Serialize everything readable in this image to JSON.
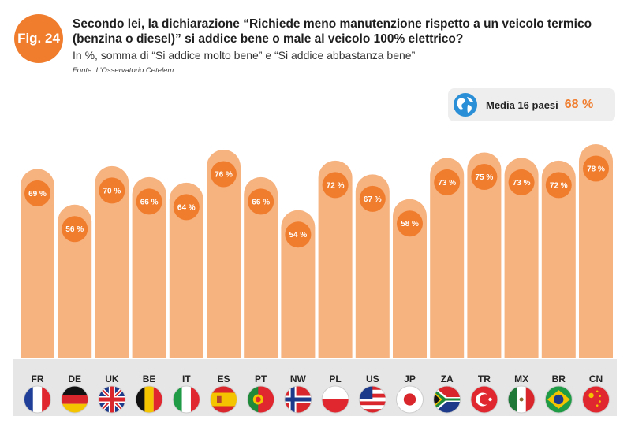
{
  "figure": {
    "badge": "Fig. 24",
    "title": "Secondo lei, la dichiarazione “Richiede meno manutenzione rispetto a un veicolo termico (benzina o diesel)” si addice bene o male al veicolo 100% elettrico?",
    "subtitle": "In %, somma di “Si addice molto bene” e “Si addice abbastanza bene”",
    "source": "Fonte: L’Osservatorio Cetelem"
  },
  "average": {
    "icon": "globe-icon",
    "label": "Media 16 paesi",
    "value": "68 %"
  },
  "colors": {
    "bar": "#f6b27f",
    "label_circle": "#f07d2e",
    "accent": "#f07d2e",
    "band": "#e6e6e6"
  },
  "chart_data": {
    "type": "bar",
    "categories": [
      "FR",
      "DE",
      "UK",
      "BE",
      "IT",
      "ES",
      "PT",
      "NW",
      "PL",
      "US",
      "JP",
      "ZA",
      "TR",
      "MX",
      "BR",
      "CN"
    ],
    "values": [
      69,
      56,
      70,
      66,
      64,
      76,
      66,
      54,
      72,
      67,
      58,
      73,
      75,
      73,
      72,
      78
    ],
    "value_labels": [
      "69 %",
      "56 %",
      "70 %",
      "66 %",
      "64 %",
      "76 %",
      "66 %",
      "54 %",
      "72 %",
      "67 %",
      "58 %",
      "73 %",
      "75 %",
      "73 %",
      "72 %",
      "78 %"
    ],
    "flags": [
      "france-flag-icon",
      "germany-flag-icon",
      "uk-flag-icon",
      "belgium-flag-icon",
      "italy-flag-icon",
      "spain-flag-icon",
      "portugal-flag-icon",
      "norway-flag-icon",
      "poland-flag-icon",
      "usa-flag-icon",
      "japan-flag-icon",
      "south-africa-flag-icon",
      "turkey-flag-icon",
      "mexico-flag-icon",
      "brazil-flag-icon",
      "china-flag-icon"
    ],
    "title": "",
    "xlabel": "",
    "ylabel": "",
    "ylim": [
      0,
      80
    ],
    "grid": false,
    "legend": "none"
  }
}
